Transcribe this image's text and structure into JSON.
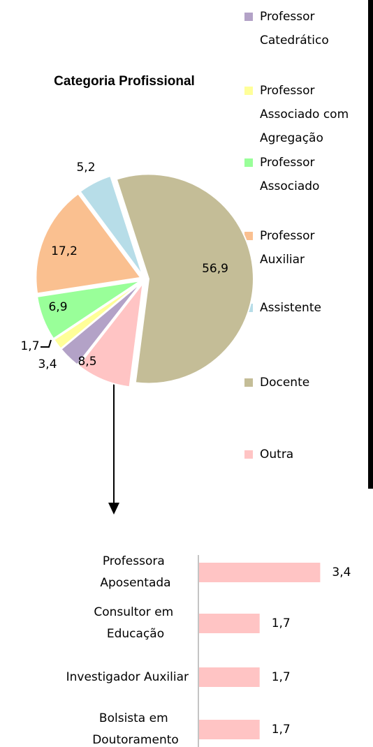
{
  "chart_data": [
    {
      "type": "pie",
      "title": "Categoria Profissional",
      "categories": [
        "Professor Catedrático",
        "Professor Associado com Agregação",
        "Professor Associado",
        "Professor Auxiliar",
        "Assistente",
        "Docente",
        "Outra"
      ],
      "values": [
        3.4,
        1.7,
        6.9,
        17.2,
        5.2,
        56.9,
        8.5
      ],
      "value_labels": [
        "3,4",
        "1,7",
        "6,9",
        "17,2",
        "5,2",
        "56,9",
        "8,5"
      ],
      "colors": [
        "#b3a2c7",
        "#ffff99",
        "#99ff99",
        "#fac090",
        "#b7dde8",
        "#c4bd97",
        "#ffc4c4"
      ]
    },
    {
      "type": "bar",
      "orientation": "horizontal",
      "categories": [
        "Professora Aposentada",
        "Consultor em Educação",
        "Investigador Auxiliar",
        "Bolsista em Doutoramento"
      ],
      "values": [
        3.4,
        1.7,
        1.7,
        1.7
      ],
      "value_labels": [
        "3,4",
        "1,7",
        "1,7",
        "1,7"
      ],
      "color": "#ffc4c4"
    }
  ]
}
